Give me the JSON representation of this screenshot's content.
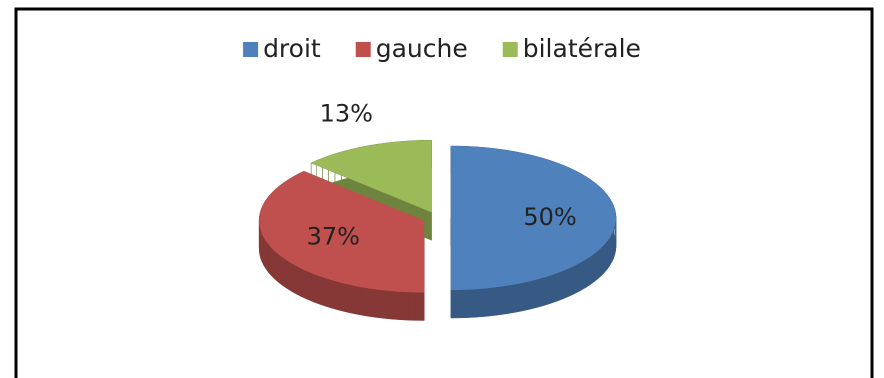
{
  "chart_data": {
    "type": "pie",
    "categories": [
      "droit",
      "gauche",
      "bilatérale"
    ],
    "values": [
      50,
      37,
      13
    ],
    "value_labels": [
      "50%",
      "37%",
      "13%"
    ],
    "colors": [
      "#4f81bd",
      "#c0504d",
      "#9bbb59"
    ],
    "legend": "top"
  }
}
